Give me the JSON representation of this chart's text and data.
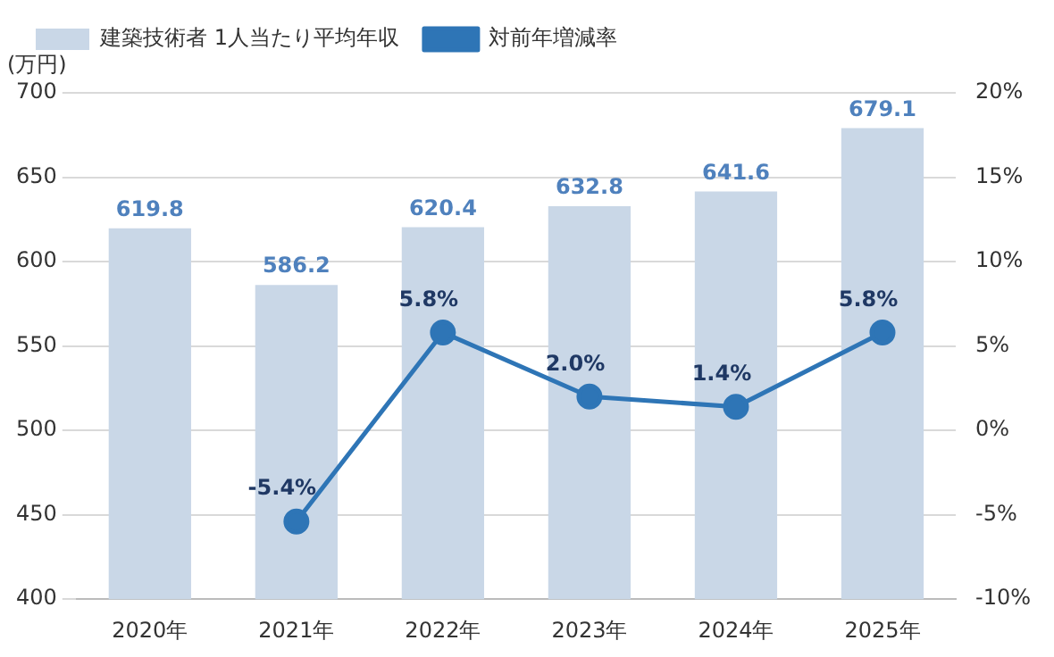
{
  "chart_data": {
    "type": "bar",
    "ylabel": "(万円)",
    "categories": [
      "2020年",
      "2021年",
      "2022年",
      "2023年",
      "2024年",
      "2025年"
    ],
    "series": [
      {
        "name": "建築技術者 1人当たり平均年収",
        "color": "#c9d7e7",
        "values": [
          619.8,
          586.2,
          620.4,
          632.8,
          641.6,
          679.1
        ],
        "value_labels": [
          "619.8",
          "586.2",
          "620.4",
          "632.8",
          "641.6",
          "679.1"
        ]
      },
      {
        "name": "対前年増減率",
        "type": "line",
        "axis": "y2",
        "color": "#2e75b6",
        "values": [
          null,
          -5.4,
          5.8,
          2.0,
          1.4,
          5.8
        ],
        "value_labels": [
          null,
          "-5.4%",
          "5.8%",
          "2.0%",
          "1.4%",
          "5.8%"
        ]
      }
    ],
    "ylim": [
      400,
      700
    ],
    "yticks": [
      400,
      450,
      500,
      550,
      600,
      650,
      700
    ],
    "y2lim": [
      -10,
      20
    ],
    "y2ticks": [
      {
        "value": -10,
        "label": "-10%"
      },
      {
        "value": -5,
        "label": "-5%"
      },
      {
        "value": 0,
        "label": "0%"
      },
      {
        "value": 5,
        "label": "5%"
      },
      {
        "value": 10,
        "label": "10%"
      },
      {
        "value": 15,
        "label": "15%"
      },
      {
        "value": 20,
        "label": "20%"
      }
    ],
    "grid": "y",
    "legend": "top left",
    "marker": "circle",
    "line_style": "solid"
  }
}
